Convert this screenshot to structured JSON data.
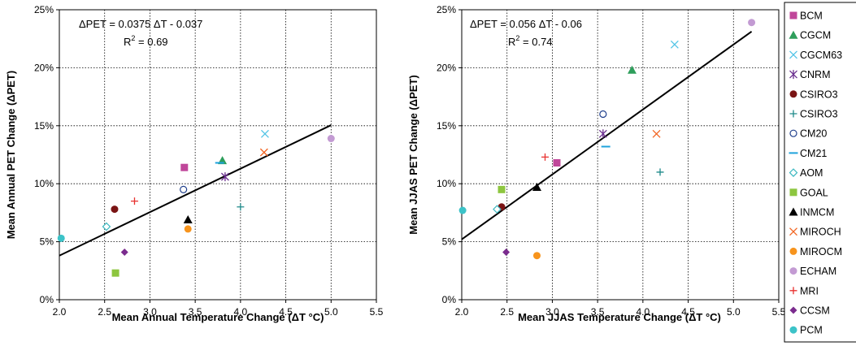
{
  "chart_data": [
    {
      "type": "scatter",
      "title": "",
      "xlabel": "Mean Annual Temperature Change (ΔT °C)",
      "ylabel": "Mean Annual PET Change (ΔPET)",
      "xlim": [
        2.0,
        5.5
      ],
      "ylim": [
        0,
        25
      ],
      "x_ticks": [
        "2.0",
        "2.5",
        "3.0",
        "3.5",
        "4.0",
        "4.5",
        "5.0",
        "5.5"
      ],
      "y_ticks": [
        "0%",
        "5%",
        "10%",
        "15%",
        "20%",
        "25%"
      ],
      "grid": true,
      "equation": "ΔPET = 0.0375 ΔT - 0.037",
      "r2": "R2 = 0.69",
      "trendline": {
        "slope": 0.0375,
        "intercept": -0.037,
        "x_range": [
          2.0,
          5.0
        ]
      },
      "series": [
        {
          "name": "BCM",
          "x": 3.38,
          "y": 11.4
        },
        {
          "name": "CGCM",
          "x": 3.8,
          "y": 12.0
        },
        {
          "name": "CGCM63",
          "x": 4.27,
          "y": 14.3
        },
        {
          "name": "CNRM",
          "x": 3.83,
          "y": 10.6
        },
        {
          "name": "CSIRO3",
          "x": 2.61,
          "y": 7.8
        },
        {
          "name": "CSIRO3",
          "x": 4.0,
          "y": 8.0
        },
        {
          "name": "CM20",
          "x": 3.37,
          "y": 9.5
        },
        {
          "name": "CM21",
          "x": 3.77,
          "y": 11.8
        },
        {
          "name": "AOM",
          "x": 2.52,
          "y": 6.3
        },
        {
          "name": "GOAL",
          "x": 2.62,
          "y": 2.3
        },
        {
          "name": "INMCM",
          "x": 3.42,
          "y": 6.9
        },
        {
          "name": "MIROCH",
          "x": 4.26,
          "y": 12.7
        },
        {
          "name": "MIROCM",
          "x": 3.42,
          "y": 6.1
        },
        {
          "name": "ECHAM",
          "x": 5.0,
          "y": 13.9
        },
        {
          "name": "MRI",
          "x": 2.83,
          "y": 8.5
        },
        {
          "name": "CCSM",
          "x": 2.72,
          "y": 4.1
        },
        {
          "name": "PCM",
          "x": 2.02,
          "y": 5.3
        }
      ]
    },
    {
      "type": "scatter",
      "title": "",
      "xlabel": "Mean JJAS Temperature Change (ΔT °C)",
      "ylabel": "Mean JJAS PET Change (ΔPET)",
      "xlim": [
        2.0,
        5.5
      ],
      "ylim": [
        0,
        25
      ],
      "x_ticks": [
        "2.0",
        "2.5",
        "3.0",
        "3.5",
        "4.0",
        "4.5",
        "5.0",
        "5.5"
      ],
      "y_ticks": [
        "0%",
        "5%",
        "10%",
        "15%",
        "20%",
        "25%"
      ],
      "grid": true,
      "equation": "ΔPET = 0.056 ΔT - 0.06",
      "r2": "R2 = 0.74",
      "trendline": {
        "slope": 0.056,
        "intercept": -0.06,
        "x_range": [
          2.0,
          5.2
        ]
      },
      "series": [
        {
          "name": "BCM",
          "x": 3.05,
          "y": 11.8
        },
        {
          "name": "CGCM",
          "x": 3.88,
          "y": 19.8
        },
        {
          "name": "CGCM63",
          "x": 4.35,
          "y": 22.0
        },
        {
          "name": "CNRM",
          "x": 3.56,
          "y": 14.3
        },
        {
          "name": "CSIRO3",
          "x": 2.44,
          "y": 8.0
        },
        {
          "name": "CSIRO3",
          "x": 4.19,
          "y": 11.0
        },
        {
          "name": "CM20",
          "x": 3.56,
          "y": 16.0
        },
        {
          "name": "CM21",
          "x": 3.59,
          "y": 13.2
        },
        {
          "name": "AOM",
          "x": 2.39,
          "y": 7.8
        },
        {
          "name": "GOAL",
          "x": 2.44,
          "y": 9.5
        },
        {
          "name": "INMCM",
          "x": 2.83,
          "y": 9.7
        },
        {
          "name": "MIROCH",
          "x": 4.15,
          "y": 14.3
        },
        {
          "name": "MIROCM",
          "x": 2.83,
          "y": 3.8
        },
        {
          "name": "ECHAM",
          "x": 5.2,
          "y": 23.9
        },
        {
          "name": "MRI",
          "x": 2.92,
          "y": 12.3
        },
        {
          "name": "CCSM",
          "x": 2.49,
          "y": 4.1
        },
        {
          "name": "PCM",
          "x": 2.01,
          "y": 7.7
        }
      ]
    }
  ],
  "legend": [
    {
      "label": "BCM",
      "marker": "square",
      "color": "#C0479A"
    },
    {
      "label": "CGCM",
      "marker": "triangle",
      "color": "#2E9E5B"
    },
    {
      "label": "CGCM63",
      "marker": "x",
      "color": "#52C4E6"
    },
    {
      "label": "CNRM",
      "marker": "star",
      "color": "#6B2F8F"
    },
    {
      "label": "CSIRO3",
      "marker": "circle",
      "color": "#7A1414"
    },
    {
      "label": "CSIRO3",
      "marker": "plus",
      "color": "#1E8A8A"
    },
    {
      "label": "CM20",
      "marker": "open-circle",
      "color": "#1F3F8C"
    },
    {
      "label": "CM21",
      "marker": "dash",
      "color": "#1FA3DC"
    },
    {
      "label": "AOM",
      "marker": "open-diamond",
      "color": "#3CB8C0"
    },
    {
      "label": "GOAL",
      "marker": "square",
      "color": "#8DC63F"
    },
    {
      "label": "INMCM",
      "marker": "triangle",
      "color": "#000000"
    },
    {
      "label": "MIROCH",
      "marker": "x",
      "color": "#F26522"
    },
    {
      "label": "MIROCM",
      "marker": "circle",
      "color": "#F7941D"
    },
    {
      "label": "ECHAM",
      "marker": "circle",
      "color": "#C39BD3"
    },
    {
      "label": "MRI",
      "marker": "plus",
      "color": "#E8312F"
    },
    {
      "label": "CCSM",
      "marker": "diamond",
      "color": "#7B2C8E"
    },
    {
      "label": "PCM",
      "marker": "circle",
      "color": "#3CC3C8"
    }
  ]
}
